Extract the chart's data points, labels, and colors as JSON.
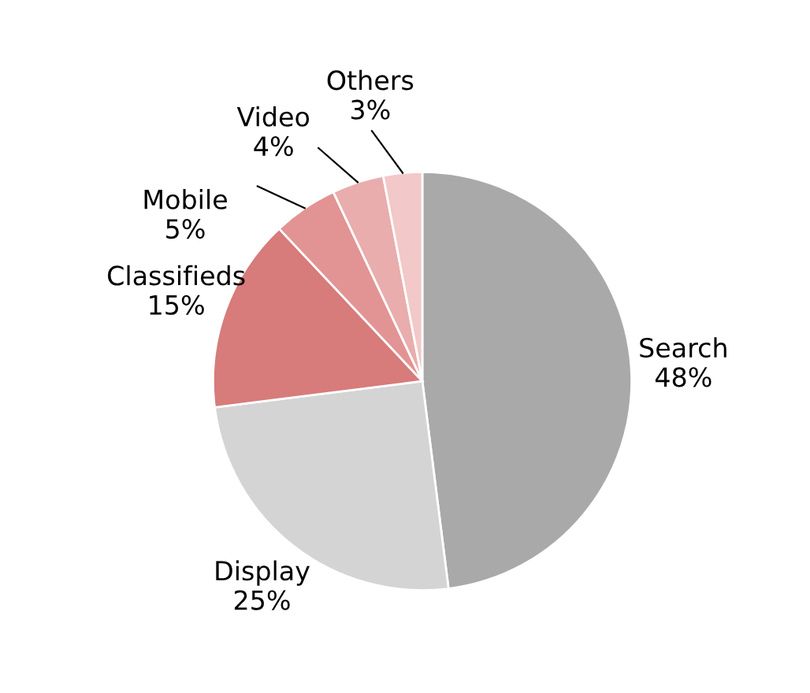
{
  "chart_data": {
    "type": "pie",
    "categories": [
      "Search",
      "Display",
      "Classifieds",
      "Mobile",
      "Video",
      "Others"
    ],
    "values": [
      48,
      25,
      15,
      5,
      4,
      3
    ],
    "value_labels": [
      "48%",
      "25%",
      "15%",
      "5%",
      "4%",
      "3%"
    ],
    "colors": [
      "#a9a9a9",
      "#d4d4d4",
      "#d77b7b",
      "#e29494",
      "#e9adad",
      "#f2c8c8"
    ],
    "legend": false
  }
}
